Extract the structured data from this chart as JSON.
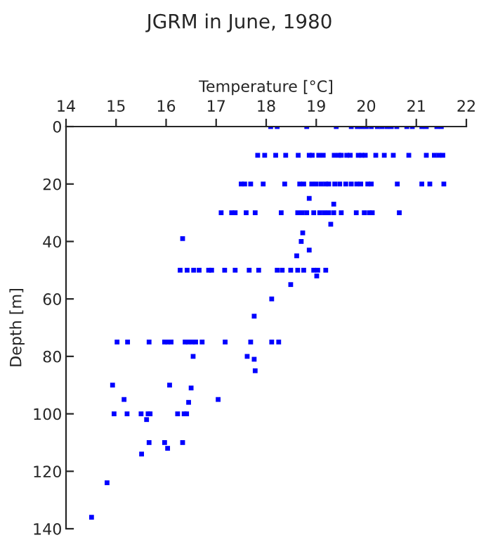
{
  "chart_data": {
    "type": "scatter",
    "title": "JGRM in June, 1980",
    "xlabel": "Temperature [°C]",
    "ylabel": "Depth [m]",
    "xlim": [
      14,
      22
    ],
    "xticks": [
      14,
      15,
      16,
      17,
      18,
      19,
      20,
      21,
      22
    ],
    "ylim": [
      140,
      0
    ],
    "yticks": [
      0,
      20,
      40,
      60,
      80,
      100,
      120,
      140
    ],
    "grid": false,
    "marker": "square",
    "series": [
      {
        "color": "#0000ff",
        "x": [
          18.09,
          18.22,
          18.81,
          19.4,
          19.7,
          19.82,
          19.91,
          20.0,
          20.1,
          20.22,
          20.31,
          20.41,
          20.5,
          20.61,
          20.81,
          20.92,
          21.11,
          21.2,
          21.41,
          21.5,
          17.83,
          17.97,
          18.19,
          18.39,
          18.64,
          18.86,
          18.92,
          19.05,
          19.14,
          19.36,
          19.45,
          19.5,
          19.61,
          19.68,
          19.84,
          19.91,
          19.98,
          20.19,
          20.36,
          20.54,
          20.85,
          21.2,
          21.36,
          21.45,
          21.53,
          17.5,
          17.57,
          17.69,
          17.94,
          18.37,
          18.67,
          18.75,
          18.91,
          19.0,
          19.1,
          19.19,
          19.25,
          19.37,
          19.47,
          19.59,
          19.7,
          19.81,
          19.89,
          20.03,
          20.1,
          20.62,
          21.11,
          21.27,
          21.55,
          18.86,
          19.35,
          17.1,
          17.31,
          17.38,
          17.6,
          17.78,
          18.3,
          18.63,
          18.72,
          18.81,
          18.95,
          19.07,
          19.16,
          19.25,
          19.35,
          19.5,
          19.8,
          19.96,
          20.06,
          20.12,
          20.66,
          19.29,
          16.33,
          18.73,
          18.7,
          18.86,
          18.61,
          16.28,
          16.42,
          16.55,
          16.66,
          16.85,
          16.91,
          17.17,
          17.38,
          17.66,
          17.85,
          18.22,
          18.32,
          18.49,
          18.63,
          18.75,
          18.95,
          19.03,
          19.19,
          19.01,
          18.49,
          18.11,
          17.76,
          15.02,
          15.23,
          15.66,
          15.97,
          16.03,
          16.1,
          16.38,
          16.44,
          16.52,
          16.59,
          16.72,
          17.18,
          17.69,
          18.11,
          18.25,
          16.54,
          17.62,
          17.76,
          17.78,
          14.93,
          16.07,
          16.5,
          15.16,
          17.04,
          16.45,
          14.96,
          15.22,
          15.5,
          15.64,
          15.68,
          16.23,
          16.36,
          16.41,
          15.61,
          15.66,
          15.97,
          16.33,
          16.03,
          15.51,
          14.82,
          14.51
        ],
        "values": [
          0,
          0,
          0,
          0,
          0,
          0,
          0,
          0,
          0,
          0,
          0,
          0,
          0,
          0,
          0,
          0,
          0,
          0,
          0,
          0,
          10,
          10,
          10,
          10,
          10,
          10,
          10,
          10,
          10,
          10,
          10,
          10,
          10,
          10,
          10,
          10,
          10,
          10,
          10,
          10,
          10,
          10,
          10,
          10,
          10,
          20,
          20,
          20,
          20,
          20,
          20,
          20,
          20,
          20,
          20,
          20,
          20,
          20,
          20,
          20,
          20,
          20,
          20,
          20,
          20,
          20,
          20,
          20,
          20,
          25,
          27,
          30,
          30,
          30,
          30,
          30,
          30,
          30,
          30,
          30,
          30,
          30,
          30,
          30,
          30,
          30,
          30,
          30,
          30,
          30,
          30,
          34,
          39,
          37,
          40,
          43,
          45,
          50,
          50,
          50,
          50,
          50,
          50,
          50,
          50,
          50,
          50,
          50,
          50,
          50,
          50,
          50,
          50,
          50,
          50,
          52,
          55,
          60,
          66,
          75,
          75,
          75,
          75,
          75,
          75,
          75,
          75,
          75,
          75,
          75,
          75,
          75,
          75,
          75,
          80,
          80,
          81,
          85,
          90,
          90,
          91,
          95,
          95,
          96,
          100,
          100,
          100,
          100,
          100,
          100,
          100,
          100,
          102,
          110,
          110,
          110,
          112,
          114,
          124,
          136
        ]
      }
    ]
  }
}
